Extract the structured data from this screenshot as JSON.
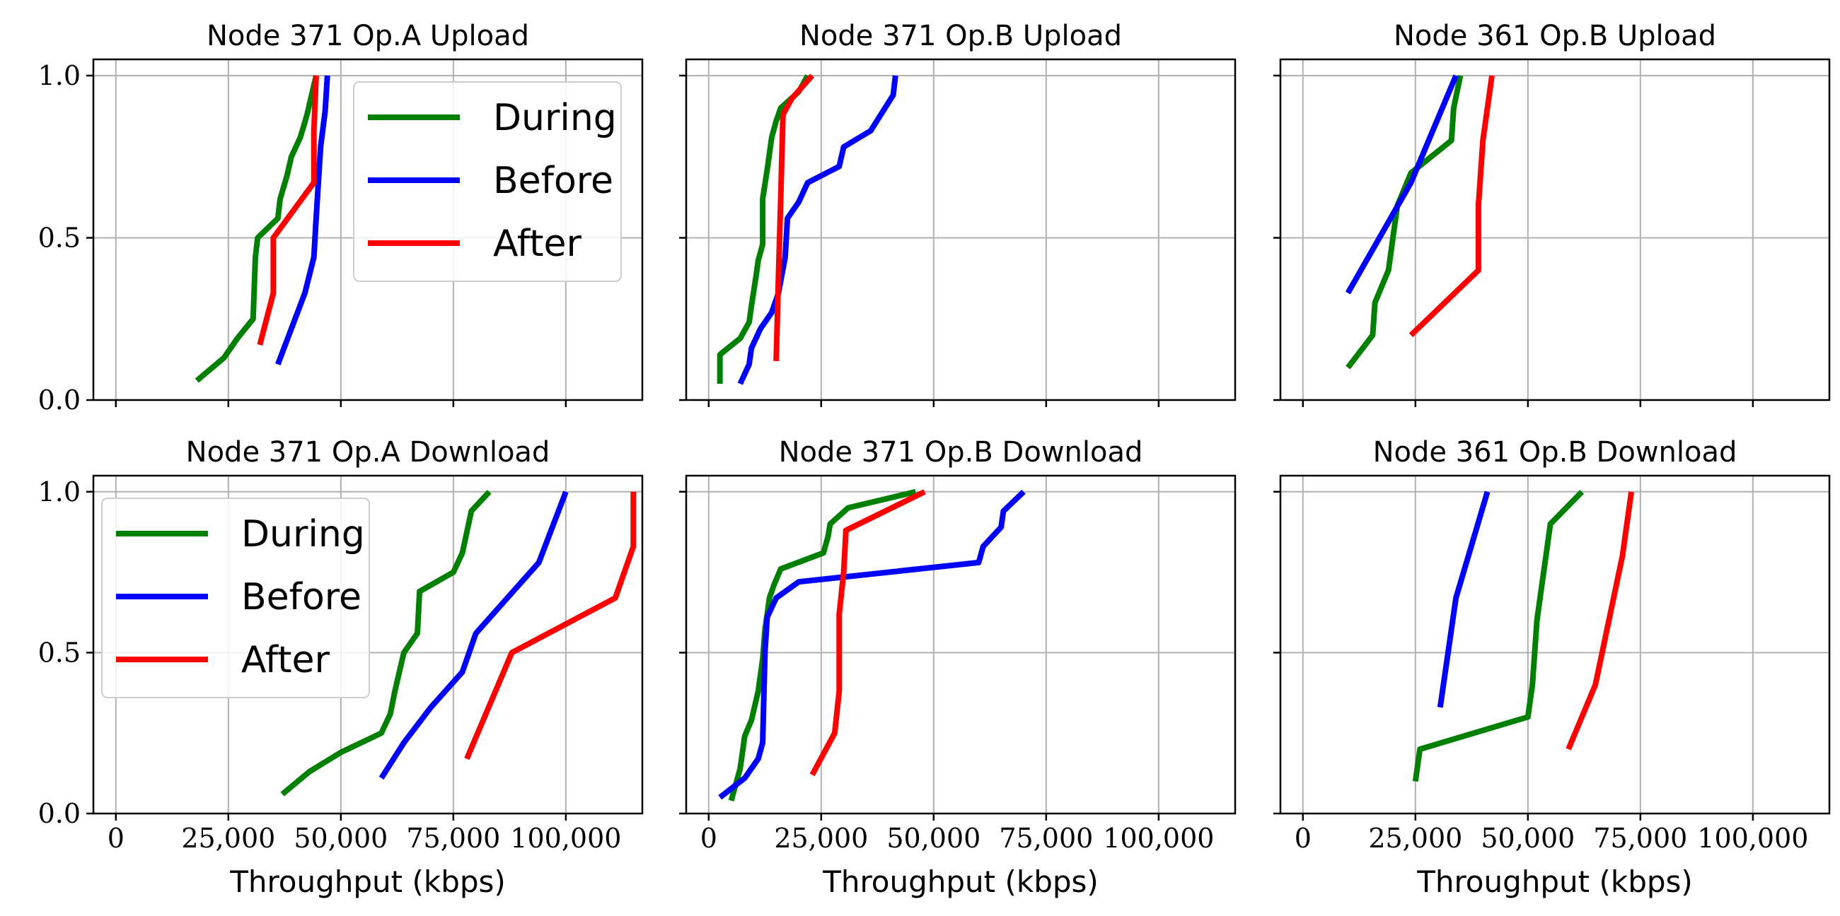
{
  "figure": {
    "colors": {
      "During": "#008000",
      "Before": "#0000ff",
      "After": "#ff0000",
      "grid": "#b0b0b0",
      "axes": "#000000"
    }
  },
  "chart_data": [
    {
      "type": "line",
      "title": "Node 371 Op.A Upload",
      "xlabel": "",
      "ylabel": "",
      "xlim": [
        -5000,
        117000
      ],
      "ylim": [
        0,
        1.05
      ],
      "xticks": [
        0,
        25000,
        50000,
        75000,
        100000
      ],
      "xtick_labels": [
        "0",
        "25,000",
        "50,000",
        "75,000",
        "100,000"
      ],
      "show_xtick_labels": false,
      "yticks": [
        0,
        0.5,
        1.0
      ],
      "ytick_labels": [
        "0.0",
        "0.5",
        "1.0"
      ],
      "show_ytick_labels": true,
      "grid": true,
      "legend": {
        "position": "top-right",
        "entries": [
          "During",
          "Before",
          "After"
        ]
      },
      "series": [
        {
          "name": "During",
          "points": [
            [
              18000,
              0.06
            ],
            [
              24000,
              0.13
            ],
            [
              27000,
              0.19
            ],
            [
              30500,
              0.25
            ],
            [
              31000,
              0.44
            ],
            [
              31500,
              0.5
            ],
            [
              36000,
              0.56
            ],
            [
              36500,
              0.62
            ],
            [
              38000,
              0.69
            ],
            [
              39000,
              0.75
            ],
            [
              41000,
              0.81
            ],
            [
              42500,
              0.88
            ],
            [
              43500,
              0.94
            ],
            [
              44500,
              1.0
            ]
          ]
        },
        {
          "name": "Before",
          "points": [
            [
              36000,
              0.11
            ],
            [
              39000,
              0.22
            ],
            [
              42000,
              0.33
            ],
            [
              44000,
              0.44
            ],
            [
              44500,
              0.56
            ],
            [
              45000,
              0.67
            ],
            [
              45500,
              0.78
            ],
            [
              46500,
              0.89
            ],
            [
              47000,
              1.0
            ]
          ]
        },
        {
          "name": "After",
          "points": [
            [
              32000,
              0.17
            ],
            [
              35000,
              0.33
            ],
            [
              35000,
              0.5
            ],
            [
              44000,
              0.67
            ],
            [
              44000,
              0.83
            ],
            [
              44500,
              1.0
            ]
          ]
        }
      ]
    },
    {
      "type": "line",
      "title": "Node 371 Op.B Upload",
      "xlabel": "",
      "ylabel": "",
      "xlim": [
        -5000,
        117000
      ],
      "ylim": [
        0,
        1.05
      ],
      "xticks": [
        0,
        25000,
        50000,
        75000,
        100000
      ],
      "xtick_labels": [
        "0",
        "25,000",
        "50,000",
        "75,000",
        "100,000"
      ],
      "show_xtick_labels": false,
      "yticks": [
        0,
        0.5,
        1.0
      ],
      "ytick_labels": [
        "0.0",
        "0.5",
        "1.0"
      ],
      "show_ytick_labels": false,
      "grid": true,
      "series": [
        {
          "name": "During",
          "points": [
            [
              2500,
              0.05
            ],
            [
              2500,
              0.14
            ],
            [
              7000,
              0.19
            ],
            [
              9000,
              0.24
            ],
            [
              9500,
              0.29
            ],
            [
              10500,
              0.38
            ],
            [
              11000,
              0.43
            ],
            [
              12000,
              0.48
            ],
            [
              12000,
              0.62
            ],
            [
              13000,
              0.71
            ],
            [
              14000,
              0.81
            ],
            [
              15000,
              0.86
            ],
            [
              16000,
              0.9
            ],
            [
              20000,
              0.95
            ],
            [
              22000,
              1.0
            ]
          ]
        },
        {
          "name": "Before",
          "points": [
            [
              7000,
              0.05
            ],
            [
              9000,
              0.11
            ],
            [
              9500,
              0.16
            ],
            [
              11500,
              0.22
            ],
            [
              14000,
              0.27
            ],
            [
              15500,
              0.33
            ],
            [
              17000,
              0.44
            ],
            [
              17500,
              0.56
            ],
            [
              20000,
              0.61
            ],
            [
              22000,
              0.67
            ],
            [
              29000,
              0.72
            ],
            [
              30000,
              0.78
            ],
            [
              36000,
              0.83
            ],
            [
              41000,
              0.94
            ],
            [
              41500,
              1.0
            ]
          ]
        },
        {
          "name": "After",
          "points": [
            [
              15000,
              0.12
            ],
            [
              15500,
              0.38
            ],
            [
              16000,
              0.62
            ],
            [
              16500,
              0.88
            ],
            [
              18500,
              0.93
            ],
            [
              23000,
              1.0
            ]
          ]
        }
      ]
    },
    {
      "type": "line",
      "title": "Node 361 Op.B Upload",
      "xlabel": "",
      "ylabel": "",
      "xlim": [
        -5000,
        117000
      ],
      "ylim": [
        0,
        1.05
      ],
      "xticks": [
        0,
        25000,
        50000,
        75000,
        100000
      ],
      "xtick_labels": [
        "0",
        "25,000",
        "50,000",
        "75,000",
        "100,000"
      ],
      "show_xtick_labels": false,
      "yticks": [
        0,
        0.5,
        1.0
      ],
      "ytick_labels": [
        "0.0",
        "0.5",
        "1.0"
      ],
      "show_ytick_labels": false,
      "grid": true,
      "series": [
        {
          "name": "During",
          "points": [
            [
              10000,
              0.1
            ],
            [
              15500,
              0.2
            ],
            [
              16000,
              0.3
            ],
            [
              19000,
              0.4
            ],
            [
              20000,
              0.5
            ],
            [
              21000,
              0.6
            ],
            [
              24000,
              0.7
            ],
            [
              33000,
              0.8
            ],
            [
              33500,
              0.9
            ],
            [
              35000,
              1.0
            ]
          ]
        },
        {
          "name": "Before",
          "points": [
            [
              10000,
              0.33
            ],
            [
              24000,
              0.67
            ],
            [
              34000,
              1.0
            ]
          ]
        },
        {
          "name": "After",
          "points": [
            [
              24000,
              0.2
            ],
            [
              39000,
              0.4
            ],
            [
              39000,
              0.6
            ],
            [
              40000,
              0.8
            ],
            [
              42000,
              1.0
            ]
          ]
        }
      ]
    },
    {
      "type": "line",
      "title": "Node 371 Op.A Download",
      "xlabel": "Throughput (kbps)",
      "ylabel": "",
      "xlim": [
        -5000,
        117000
      ],
      "ylim": [
        0,
        1.05
      ],
      "xticks": [
        0,
        25000,
        50000,
        75000,
        100000
      ],
      "xtick_labels": [
        "0",
        "25,000",
        "50,000",
        "75,000",
        "100,000"
      ],
      "show_xtick_labels": true,
      "yticks": [
        0,
        0.5,
        1.0
      ],
      "ytick_labels": [
        "0.0",
        "0.5",
        "1.0"
      ],
      "show_ytick_labels": true,
      "grid": true,
      "legend": {
        "position": "top-left",
        "entries": [
          "During",
          "Before",
          "After"
        ]
      },
      "series": [
        {
          "name": "During",
          "points": [
            [
              37000,
              0.06
            ],
            [
              43000,
              0.13
            ],
            [
              50000,
              0.19
            ],
            [
              59000,
              0.25
            ],
            [
              61000,
              0.31
            ],
            [
              62000,
              0.38
            ],
            [
              63000,
              0.44
            ],
            [
              64000,
              0.5
            ],
            [
              67000,
              0.56
            ],
            [
              67500,
              0.69
            ],
            [
              75000,
              0.75
            ],
            [
              77000,
              0.81
            ],
            [
              79000,
              0.94
            ],
            [
              83000,
              1.0
            ]
          ]
        },
        {
          "name": "Before",
          "points": [
            [
              59000,
              0.11
            ],
            [
              64000,
              0.22
            ],
            [
              70000,
              0.33
            ],
            [
              77000,
              0.44
            ],
            [
              80000,
              0.56
            ],
            [
              87000,
              0.67
            ],
            [
              94000,
              0.78
            ],
            [
              97000,
              0.89
            ],
            [
              100000,
              1.0
            ]
          ]
        },
        {
          "name": "After",
          "points": [
            [
              78000,
              0.17
            ],
            [
              88000,
              0.5
            ],
            [
              111000,
              0.67
            ],
            [
              115000,
              0.83
            ],
            [
              115000,
              1.0
            ]
          ]
        }
      ]
    },
    {
      "type": "line",
      "title": "Node 371 Op.B Download",
      "xlabel": "Throughput (kbps)",
      "ylabel": "",
      "xlim": [
        -5000,
        117000
      ],
      "ylim": [
        0,
        1.05
      ],
      "xticks": [
        0,
        25000,
        50000,
        75000,
        100000
      ],
      "xtick_labels": [
        "0",
        "25,000",
        "50,000",
        "75,000",
        "100,000"
      ],
      "show_xtick_labels": true,
      "yticks": [
        0,
        0.5,
        1.0
      ],
      "ytick_labels": [
        "0.0",
        "0.5",
        "1.0"
      ],
      "show_ytick_labels": false,
      "grid": true,
      "series": [
        {
          "name": "During",
          "points": [
            [
              5000,
              0.04
            ],
            [
              7000,
              0.14
            ],
            [
              8000,
              0.24
            ],
            [
              9500,
              0.29
            ],
            [
              11000,
              0.38
            ],
            [
              12000,
              0.48
            ],
            [
              12500,
              0.57
            ],
            [
              13500,
              0.67
            ],
            [
              14500,
              0.71
            ],
            [
              16000,
              0.76
            ],
            [
              25500,
              0.81
            ],
            [
              26500,
              0.86
            ],
            [
              27000,
              0.9
            ],
            [
              31000,
              0.95
            ],
            [
              46000,
              1.0
            ]
          ]
        },
        {
          "name": "Before",
          "points": [
            [
              2500,
              0.05
            ],
            [
              8000,
              0.11
            ],
            [
              11000,
              0.17
            ],
            [
              12000,
              0.22
            ],
            [
              12500,
              0.5
            ],
            [
              13000,
              0.61
            ],
            [
              15000,
              0.67
            ],
            [
              20000,
              0.72
            ],
            [
              60000,
              0.78
            ],
            [
              61000,
              0.83
            ],
            [
              65000,
              0.89
            ],
            [
              65500,
              0.94
            ],
            [
              70000,
              1.0
            ]
          ]
        },
        {
          "name": "After",
          "points": [
            [
              23000,
              0.12
            ],
            [
              28000,
              0.25
            ],
            [
              29000,
              0.38
            ],
            [
              29000,
              0.62
            ],
            [
              30000,
              0.75
            ],
            [
              30500,
              0.88
            ],
            [
              48000,
              1.0
            ]
          ]
        }
      ]
    },
    {
      "type": "line",
      "title": "Node 361 Op.B Download",
      "xlabel": "Throughput (kbps)",
      "ylabel": "",
      "xlim": [
        -5000,
        117000
      ],
      "ylim": [
        0,
        1.05
      ],
      "xticks": [
        0,
        25000,
        50000,
        75000,
        100000
      ],
      "xtick_labels": [
        "0",
        "25,000",
        "50,000",
        "75,000",
        "100,000"
      ],
      "show_xtick_labels": true,
      "yticks": [
        0,
        0.5,
        1.0
      ],
      "ytick_labels": [
        "0.0",
        "0.5",
        "1.0"
      ],
      "show_ytick_labels": false,
      "grid": true,
      "series": [
        {
          "name": "During",
          "points": [
            [
              25000,
              0.1
            ],
            [
              26000,
              0.2
            ],
            [
              50000,
              0.3
            ],
            [
              51000,
              0.4
            ],
            [
              51500,
              0.5
            ],
            [
              52000,
              0.6
            ],
            [
              53000,
              0.7
            ],
            [
              54000,
              0.8
            ],
            [
              55000,
              0.9
            ],
            [
              62000,
              1.0
            ]
          ]
        },
        {
          "name": "Before",
          "points": [
            [
              30500,
              0.33
            ],
            [
              34000,
              0.67
            ],
            [
              41000,
              1.0
            ]
          ]
        },
        {
          "name": "After",
          "points": [
            [
              59000,
              0.2
            ],
            [
              65000,
              0.4
            ],
            [
              68000,
              0.6
            ],
            [
              71000,
              0.8
            ],
            [
              73000,
              1.0
            ]
          ]
        }
      ]
    }
  ]
}
